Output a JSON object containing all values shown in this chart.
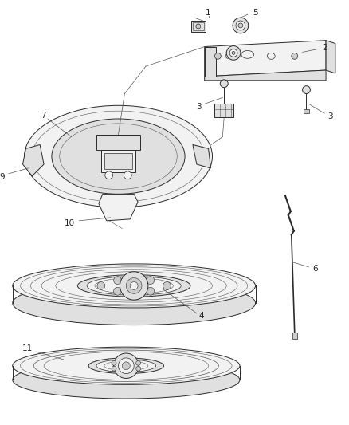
{
  "background_color": "#ffffff",
  "fig_width": 4.38,
  "fig_height": 5.33,
  "color_main": "#2a2a2a",
  "color_light": "#555555",
  "color_fill_light": "#f2f2f2",
  "color_fill_mid": "#e0e0e0",
  "color_fill_dark": "#cccccc"
}
